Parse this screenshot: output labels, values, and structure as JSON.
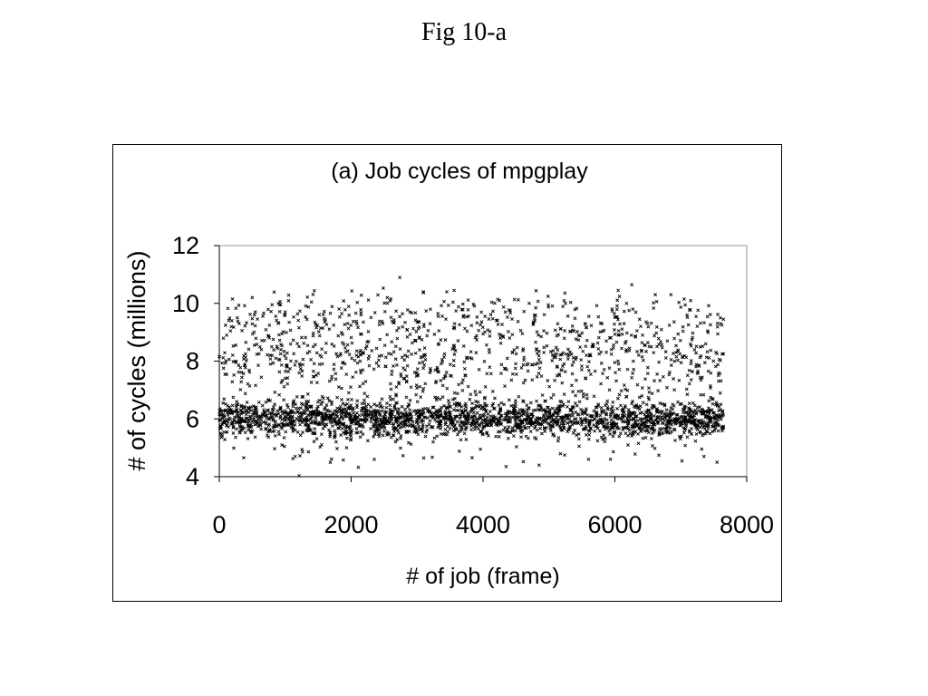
{
  "figure": {
    "caption": "Fig 10-a"
  },
  "chart_data": {
    "type": "scatter",
    "title": "(a) Job cycles of mpgplay",
    "xlabel": "# of job (frame)",
    "ylabel": "# of cycles (millions)",
    "xlim": [
      0,
      8000
    ],
    "ylim": [
      4,
      12
    ],
    "xticks": [
      "0",
      "2000",
      "4000",
      "6000",
      "8000"
    ],
    "yticks": [
      "4",
      "6",
      "8",
      "10",
      "12"
    ],
    "grid": false,
    "legend": "none",
    "marker": "x",
    "color": "#000000",
    "series": [
      {
        "description_bands": [
          {
            "x_range": [
              0,
              7650
            ],
            "y_center": 6.0,
            "y_spread": 0.3,
            "count": 2200
          },
          {
            "x_range": [
              0,
              7650
            ],
            "y_center": 8.2,
            "y_spread": 0.9,
            "count": 900
          },
          {
            "x_range": [
              0,
              7650
            ],
            "y_center": 9.6,
            "y_spread": 0.4,
            "count": 180
          },
          {
            "x_range": [
              0,
              7650
            ],
            "y_center": 5.0,
            "y_spread": 0.35,
            "count": 60
          }
        ],
        "sample_points": [
          [
            200,
            10.15
          ],
          [
            500,
            10.2
          ],
          [
            3450,
            10.4
          ],
          [
            4250,
            10.1
          ],
          [
            6050,
            10.45
          ],
          [
            6850,
            10.3
          ],
          [
            7050,
            10.15
          ],
          [
            1000,
            9.7
          ],
          [
            2150,
            9.6
          ],
          [
            4700,
            10.0
          ],
          [
            1150,
            4.7
          ],
          [
            2350,
            4.6
          ],
          [
            3100,
            4.65
          ],
          [
            4350,
            4.35
          ],
          [
            4850,
            4.4
          ],
          [
            5600,
            4.6
          ],
          [
            7350,
            4.7
          ],
          [
            7550,
            4.5
          ],
          [
            300,
            9.3
          ],
          [
            7600,
            9.5
          ]
        ]
      }
    ]
  }
}
